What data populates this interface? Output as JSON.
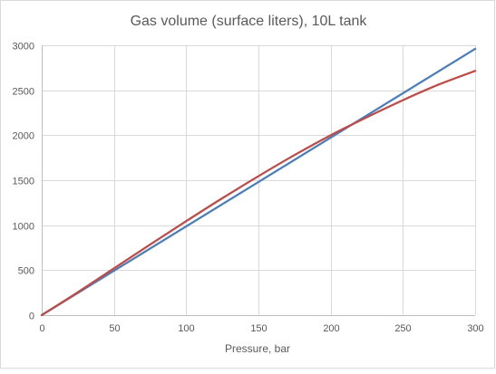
{
  "chart_data": {
    "type": "line",
    "title": "Gas volume (surface liters), 10L tank",
    "xlabel": "Pressure, bar",
    "ylabel": "",
    "xlim": [
      0,
      300
    ],
    "ylim": [
      0,
      3000
    ],
    "x_ticks": [
      0,
      50,
      100,
      150,
      200,
      250,
      300
    ],
    "y_ticks": [
      0,
      500,
      1000,
      1500,
      2000,
      2500,
      3000
    ],
    "grid": true,
    "legend": "none",
    "series": [
      {
        "color": "#4a7ebb",
        "x": [
          0,
          300
        ],
        "y": [
          0,
          2960
        ]
      },
      {
        "color": "#be4b48",
        "x": [
          0,
          25,
          50,
          75,
          100,
          125,
          150,
          175,
          200,
          225,
          250,
          275,
          300
        ],
        "y": [
          0,
          255,
          520,
          785,
          1045,
          1300,
          1545,
          1780,
          2000,
          2200,
          2390,
          2565,
          2715
        ]
      }
    ]
  }
}
